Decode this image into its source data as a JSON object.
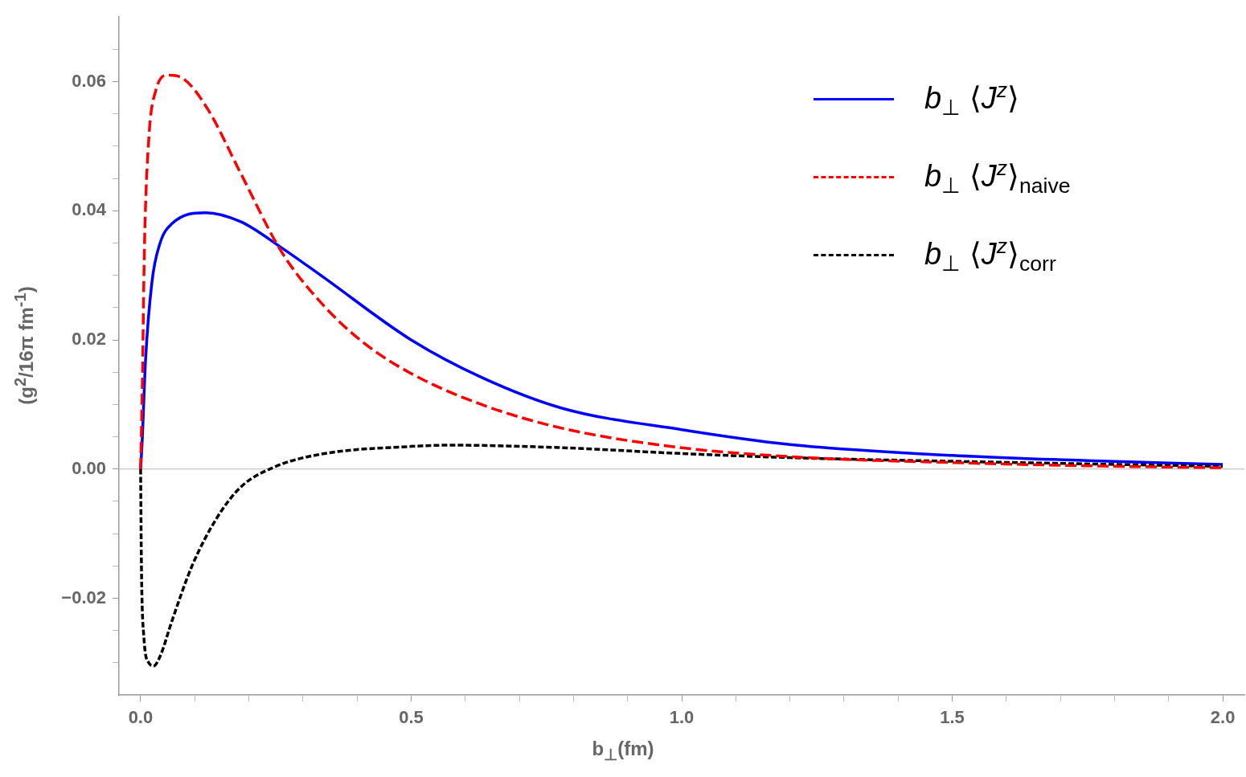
{
  "chart_data": {
    "type": "line",
    "xlabel": "b$_{⊥}$(fm)",
    "ylabel": "(g$^{2}$/16π fm$^{-1}$)",
    "legend": "top right",
    "marker": "none",
    "grid": false,
    "xlim": [
      -0.04,
      2.04
    ],
    "ylim": [
      -0.035,
      0.07
    ],
    "xticks": [
      {
        "value": 0,
        "label": "0.0"
      },
      {
        "value": 0.1,
        "label": null
      },
      {
        "value": 0.2,
        "label": null
      },
      {
        "value": 0.3,
        "label": null
      },
      {
        "value": 0.4,
        "label": null
      },
      {
        "value": 0.5,
        "label": "0.5"
      },
      {
        "value": 0.6,
        "label": null
      },
      {
        "value": 0.7,
        "label": null
      },
      {
        "value": 0.8,
        "label": null
      },
      {
        "value": 0.9,
        "label": null
      },
      {
        "value": 1,
        "label": "1.0"
      },
      {
        "value": 1.1,
        "label": null
      },
      {
        "value": 1.2,
        "label": null
      },
      {
        "value": 1.3,
        "label": null
      },
      {
        "value": 1.4,
        "label": null
      },
      {
        "value": 1.5,
        "label": "1.5"
      },
      {
        "value": 1.6,
        "label": null
      },
      {
        "value": 1.7,
        "label": null
      },
      {
        "value": 1.8,
        "label": null
      },
      {
        "value": 1.9,
        "label": null
      },
      {
        "value": 2,
        "label": "2.0"
      }
    ],
    "yticks": [
      {
        "value": -0.03,
        "label": null
      },
      {
        "value": -0.025,
        "label": null
      },
      {
        "value": -0.02,
        "label": "−0.02"
      },
      {
        "value": -0.015,
        "label": null
      },
      {
        "value": -0.01,
        "label": null
      },
      {
        "value": -0.005,
        "label": null
      },
      {
        "value": 0,
        "label": "0.00"
      },
      {
        "value": 0.005,
        "label": null
      },
      {
        "value": 0.01,
        "label": null
      },
      {
        "value": 0.015,
        "label": null
      },
      {
        "value": 0.02,
        "label": "0.02"
      },
      {
        "value": 0.025,
        "label": null
      },
      {
        "value": 0.03,
        "label": null
      },
      {
        "value": 0.035,
        "label": null
      },
      {
        "value": 0.04,
        "label": "0.04"
      },
      {
        "value": 0.045,
        "label": null
      },
      {
        "value": 0.05,
        "label": null
      },
      {
        "value": 0.055,
        "label": null
      },
      {
        "value": 0.06,
        "label": "0.06"
      },
      {
        "value": 0.065,
        "label": null
      }
    ],
    "ref_lines": [
      {
        "axis": "y",
        "value": 0,
        "color": "#b4b4b4"
      }
    ],
    "series": [
      {
        "name": "b$_{⊥}$ ⟨J$^{z}$⟩",
        "color": "#0000ff",
        "line_style": "solid",
        "x": [
          0,
          0.003,
          0.009,
          0.021,
          0.036,
          0.058,
          0.12,
          0.185,
          0.26,
          0.333,
          0.5,
          0.63,
          0.78,
          1.0,
          1.2,
          1.5,
          1.75,
          2.0
        ],
        "values": [
          0,
          0.0045,
          0.0167,
          0.029,
          0.035,
          0.038,
          0.0397,
          0.0383,
          0.0343,
          0.03,
          0.02,
          0.0142,
          0.0094,
          0.0061,
          0.0038,
          0.0021,
          0.0013,
          0.0007
        ]
      },
      {
        "name": "b$_{⊥}$ ⟨J$^{z}$⟩$_{naive}$",
        "color": "#ff0000",
        "line_style": "dashed",
        "x": [
          0,
          0.003,
          0.007,
          0.015,
          0.028,
          0.05,
          0.08,
          0.125,
          0.185,
          0.26,
          0.333,
          0.41,
          0.5,
          0.63,
          0.78,
          1.0,
          1.226,
          1.5,
          1.75,
          2.0
        ],
        "values": [
          0,
          0.012,
          0.034,
          0.051,
          0.0586,
          0.061,
          0.0604,
          0.0556,
          0.0458,
          0.0337,
          0.0258,
          0.0197,
          0.0148,
          0.01,
          0.0063,
          0.0033,
          0.0018,
          0.001,
          0.0005,
          0.0002
        ]
      },
      {
        "name": "b$_{⊥}$ ⟨J$^{z}$⟩$_{corr}$",
        "color": "#000000",
        "line_style": "dotted",
        "x": [
          0,
          0.0015,
          0.006,
          0.015,
          0.024,
          0.036,
          0.058,
          0.095,
          0.14,
          0.185,
          0.244,
          0.333,
          0.5,
          0.57,
          0.78,
          1.0,
          1.226,
          1.5,
          2.0
        ],
        "values": [
          0,
          -0.015,
          -0.026,
          -0.03,
          -0.0305,
          -0.029,
          -0.0235,
          -0.015,
          -0.0077,
          -0.0028,
          0.0002,
          0.0023,
          0.0035,
          0.0037,
          0.0033,
          0.0024,
          0.0017,
          0.0012,
          0.0004
        ]
      }
    ]
  }
}
